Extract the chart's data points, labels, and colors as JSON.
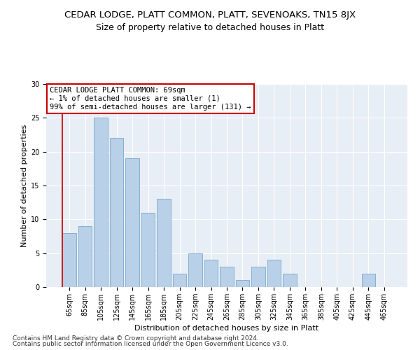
{
  "title": "CEDAR LODGE, PLATT COMMON, PLATT, SEVENOAKS, TN15 8JX",
  "subtitle": "Size of property relative to detached houses in Platt",
  "xlabel": "Distribution of detached houses by size in Platt",
  "ylabel": "Number of detached properties",
  "footer_line1": "Contains HM Land Registry data © Crown copyright and database right 2024.",
  "footer_line2": "Contains public sector information licensed under the Open Government Licence v3.0.",
  "annotation_title": "CEDAR LODGE PLATT COMMON: 69sqm",
  "annotation_line1": "← 1% of detached houses are smaller (1)",
  "annotation_line2": "99% of semi-detached houses are larger (131) →",
  "categories": [
    "65sqm",
    "85sqm",
    "105sqm",
    "125sqm",
    "145sqm",
    "165sqm",
    "185sqm",
    "205sqm",
    "225sqm",
    "245sqm",
    "265sqm",
    "285sqm",
    "305sqm",
    "325sqm",
    "345sqm",
    "365sqm",
    "385sqm",
    "405sqm",
    "425sqm",
    "445sqm",
    "465sqm"
  ],
  "values": [
    8,
    9,
    25,
    22,
    19,
    11,
    13,
    2,
    5,
    4,
    3,
    1,
    3,
    4,
    2,
    0,
    0,
    0,
    0,
    2,
    0
  ],
  "bar_color": "#b8d0e8",
  "bar_edge_color": "#7aaac8",
  "background_color": "#ffffff",
  "plot_bg_color": "#e8eef5",
  "ylim": [
    0,
    30
  ],
  "yticks": [
    0,
    5,
    10,
    15,
    20,
    25,
    30
  ],
  "grid_color": "#ffffff",
  "highlight_color": "#cc2222",
  "annotation_box_color": "#ffffff",
  "annotation_box_edge": "#cc0000",
  "title_fontsize": 9.5,
  "subtitle_fontsize": 9,
  "axis_label_fontsize": 8,
  "tick_fontsize": 7,
  "footer_fontsize": 6.5,
  "annotation_fontsize": 7.5
}
